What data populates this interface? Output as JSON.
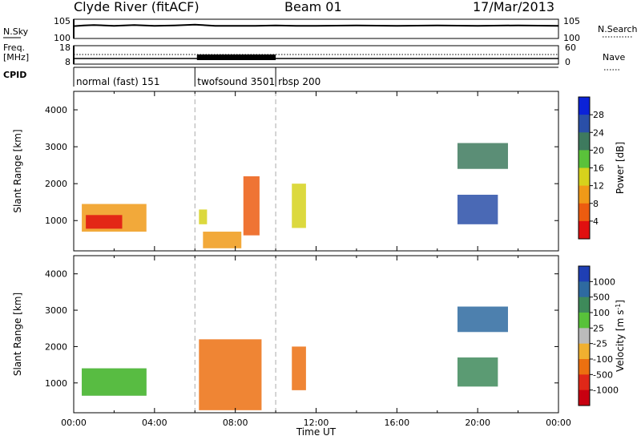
{
  "header": {
    "station": "Clyde River (fitACF)",
    "beam": "Beam 01",
    "date": "17/Mar/2013"
  },
  "colors": {
    "axis": "#000000",
    "guide": "#aaaaaa"
  },
  "chart_data": [
    {
      "type": "line",
      "panel": "noise",
      "left_label": "N.Sky",
      "right_label": "N.Search",
      "left_ticks": [
        "10^5",
        "10^0"
      ],
      "right_ticks": [
        "10^5",
        "10^0"
      ],
      "series": [
        {
          "x": [
            0,
            0.5,
            1,
            2,
            3,
            4,
            5,
            6,
            7,
            8,
            9,
            10,
            11,
            12,
            14,
            16,
            18,
            20,
            22,
            24
          ],
          "y": [
            3.2,
            3.4,
            3.5,
            3.3,
            3.5,
            3.3,
            3.4,
            3.6,
            3.3,
            3.3,
            3.3,
            3.4,
            3.3,
            3.3,
            3.4,
            3.3,
            3.4,
            3.3,
            3.4,
            3.3
          ]
        }
      ],
      "xlim": [
        0,
        24
      ]
    },
    {
      "type": "line",
      "panel": "frequency",
      "left_label": "Freq.",
      "left_unit": "[MHz]",
      "right_label": "Nave",
      "left_ticks": [
        "18",
        "8"
      ],
      "right_ticks": [
        "60",
        "0"
      ],
      "ylim": [
        8,
        18
      ],
      "xlim": [
        0,
        24
      ]
    },
    {
      "type": "table",
      "panel": "cpid",
      "label": "CPID",
      "modes": [
        {
          "name": "normal (fast) 151",
          "start": 0,
          "end": 6
        },
        {
          "name": "twofsound 3501",
          "start": 6,
          "end": 10
        },
        {
          "name": "rbsp 200",
          "start": 10,
          "end": 24
        }
      ]
    },
    {
      "type": "heatmap",
      "panel": "power",
      "ylabel": "Slant Range [km]",
      "ylim": [
        180,
        4500
      ],
      "yticks": [
        "1000",
        "2000",
        "3000",
        "4000"
      ],
      "xlim": [
        0,
        24
      ],
      "colorbar": {
        "label": "Power [dB]",
        "ticks": [
          "4",
          "8",
          "12",
          "16",
          "20",
          "24",
          "28"
        ],
        "colors": [
          "#0b22d8",
          "#2a4fa8",
          "#3e7a5e",
          "#5ac23a",
          "#d6d21c",
          "#f09a18",
          "#ec5c10",
          "#e01010"
        ]
      },
      "regions": [
        {
          "x0": 0.4,
          "x1": 3.6,
          "y0": 700,
          "y1": 1450,
          "level": 5
        },
        {
          "x0": 0.6,
          "x1": 2.4,
          "y0": 780,
          "y1": 1150,
          "level": 7
        },
        {
          "x0": 6.2,
          "x1": 6.6,
          "y0": 900,
          "y1": 1300,
          "level": 4
        },
        {
          "x0": 6.4,
          "x1": 8.3,
          "y0": 250,
          "y1": 700,
          "level": 5
        },
        {
          "x0": 8.4,
          "x1": 9.2,
          "y0": 600,
          "y1": 2200,
          "level": 6
        },
        {
          "x0": 10.8,
          "x1": 11.5,
          "y0": 800,
          "y1": 2000,
          "level": 4
        },
        {
          "x0": 19.0,
          "x1": 21.5,
          "y0": 2400,
          "y1": 3100,
          "level": 2
        },
        {
          "x0": 19.0,
          "x1": 21.0,
          "y0": 900,
          "y1": 1700,
          "level": 1
        }
      ]
    },
    {
      "type": "heatmap",
      "panel": "velocity",
      "ylabel": "Slant Range [km]",
      "ylim": [
        180,
        4500
      ],
      "yticks": [
        "1000",
        "2000",
        "3000",
        "4000"
      ],
      "xlim": [
        0,
        24
      ],
      "xticks": [
        "00:00",
        "04:00",
        "08:00",
        "12:00",
        "16:00",
        "20:00",
        "00:00"
      ],
      "xlabel": "Time UT",
      "colorbar": {
        "label": "Velocity [m s^-1]",
        "ticks": [
          "1000",
          "500",
          "100",
          "25",
          "-25",
          "-100",
          "-500",
          "-1000"
        ],
        "colors": [
          "#1f3fb4",
          "#2e6aa0",
          "#3e8a5a",
          "#58c23a",
          "#bbbbbb",
          "#f0b030",
          "#ec7010",
          "#e02818",
          "#c80010"
        ]
      },
      "regions": [
        {
          "x0": 0.4,
          "x1": 3.6,
          "y0": 650,
          "y1": 1400,
          "level": 2
        },
        {
          "x0": 0.4,
          "x1": 3.6,
          "y0": 650,
          "y1": 1400,
          "level": 3
        },
        {
          "x0": 6.2,
          "x1": 9.3,
          "y0": 250,
          "y1": 2200,
          "level": 6
        },
        {
          "x0": 10.8,
          "x1": 11.5,
          "y0": 800,
          "y1": 2000,
          "level": 6
        },
        {
          "x0": 19.0,
          "x1": 21.5,
          "y0": 2400,
          "y1": 3100,
          "level": 1
        },
        {
          "x0": 19.0,
          "x1": 21.0,
          "y0": 900,
          "y1": 1700,
          "level": 2
        }
      ]
    }
  ]
}
